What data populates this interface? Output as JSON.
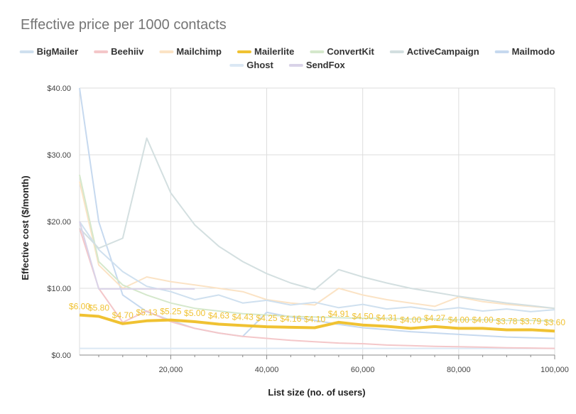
{
  "chart_data": {
    "type": "line",
    "title": "Effective price per 1000 contacts",
    "xlabel": "List size (no. of users)",
    "ylabel": "Effective cost ($/month)",
    "xlim": [
      1000,
      100000
    ],
    "ylim": [
      0,
      40
    ],
    "x_ticks": [
      20000,
      40000,
      60000,
      80000,
      100000
    ],
    "x_tick_labels": [
      "20,000",
      "40,000",
      "60,000",
      "80,000",
      "100,000"
    ],
    "y_ticks": [
      0,
      10,
      20,
      30,
      40
    ],
    "y_tick_labels": [
      "$0.00",
      "$10.00",
      "$20.00",
      "$30.00",
      "$40.00"
    ],
    "grid": true,
    "legend_position": "top",
    "series": [
      {
        "name": "BigMailer",
        "color": "#cfe0ef",
        "width": 2,
        "x": [
          1000,
          5000,
          10000,
          15000,
          20000,
          25000,
          30000,
          35000,
          40000,
          45000,
          50000,
          55000,
          60000,
          65000,
          70000,
          75000,
          80000,
          85000,
          90000,
          95000,
          100000
        ],
        "y": [
          20,
          15.8,
          12.5,
          10.3,
          9.5,
          8.3,
          9.0,
          7.8,
          8.2,
          7.5,
          7.9,
          7.1,
          7.6,
          6.9,
          7.2,
          6.7,
          7.1,
          6.6,
          6.9,
          6.5,
          6.8
        ]
      },
      {
        "name": "Beehiiv",
        "color": "#f4c7c9",
        "width": 2,
        "x": [
          1000,
          5000,
          10000,
          15000,
          20000,
          25000,
          30000,
          35000,
          40000,
          45000,
          50000,
          55000,
          60000,
          65000,
          70000,
          75000,
          80000,
          85000,
          90000,
          95000,
          100000
        ],
        "y": [
          19,
          10,
          4.9,
          6.6,
          5.0,
          4.0,
          3.3,
          2.8,
          2.5,
          2.2,
          2.0,
          1.8,
          1.7,
          1.5,
          1.4,
          1.3,
          1.25,
          1.18,
          1.1,
          1.05,
          1.0
        ]
      },
      {
        "name": "Mailchimp",
        "color": "#fbe3c5",
        "width": 2,
        "x": [
          1000,
          5000,
          10000,
          15000,
          20000,
          25000,
          30000,
          35000,
          40000,
          45000,
          50000,
          55000,
          60000,
          65000,
          70000,
          75000,
          80000,
          85000,
          90000,
          95000,
          100000
        ],
        "y": [
          26,
          13.5,
          10,
          11.7,
          11.0,
          10.5,
          10.0,
          9.5,
          8.3,
          7.8,
          7.5,
          10.0,
          9.0,
          8.3,
          7.8,
          7.3,
          8.7,
          8.0,
          7.6,
          7.3,
          7.0
        ]
      },
      {
        "name": "Mailerlite",
        "color": "#f0c232",
        "width": 4,
        "x": [
          1000,
          5000,
          10000,
          15000,
          20000,
          25000,
          30000,
          35000,
          40000,
          45000,
          50000,
          55000,
          60000,
          65000,
          70000,
          75000,
          80000,
          85000,
          90000,
          95000,
          100000
        ],
        "y": [
          6.0,
          5.8,
          4.7,
          5.13,
          5.25,
          5.0,
          4.63,
          4.43,
          4.25,
          4.16,
          4.1,
          4.91,
          4.5,
          4.31,
          4.0,
          4.27,
          4.0,
          4.0,
          3.78,
          3.79,
          3.6
        ],
        "labels": [
          "$6.00",
          "$5.80",
          "$4.70",
          "$5.13",
          "$5.25",
          "$5.00",
          "$4.63",
          "$4.43",
          "$4.25",
          "$4.16",
          "$4.10",
          "$4.91",
          "$4.50",
          "$4.31",
          "$4.00",
          "$4.27",
          "$4.00",
          "$4.00",
          "$3.78",
          "$3.79",
          "$3.60"
        ]
      },
      {
        "name": "ConvertKit",
        "color": "#d5e8cc",
        "width": 2,
        "x": [
          1000,
          5000,
          10000,
          15000,
          20000,
          25000,
          30000,
          35000,
          40000,
          45000,
          50000,
          55000,
          60000,
          65000,
          70000,
          75000,
          80000,
          85000,
          90000,
          95000,
          100000
        ],
        "y": [
          27,
          14,
          10.5,
          9.0,
          7.8,
          7.0,
          6.6,
          6.2,
          6.0,
          5.8,
          5.7,
          5.6,
          5.5,
          5.5,
          5.4,
          5.4,
          5.3,
          5.3,
          5.2,
          5.2,
          5.1
        ]
      },
      {
        "name": "ActiveCampaign",
        "color": "#d3dfe0",
        "width": 2,
        "x": [
          1000,
          5000,
          10000,
          15000,
          20000,
          25000,
          30000,
          35000,
          40000,
          45000,
          50000,
          55000,
          60000,
          65000,
          70000,
          75000,
          80000,
          85000,
          90000,
          95000,
          100000
        ],
        "y": [
          19,
          16,
          17.5,
          32.5,
          24.3,
          19.5,
          16.3,
          14.0,
          12.2,
          10.8,
          9.8,
          12.8,
          11.7,
          10.8,
          10.0,
          9.4,
          8.8,
          8.3,
          7.8,
          7.4,
          7.0
        ]
      },
      {
        "name": "Mailmodo",
        "color": "#c6d9ef",
        "width": 2,
        "x": [
          1000,
          5000,
          10000,
          15000,
          20000,
          25000,
          30000,
          35000,
          40000,
          45000,
          50000,
          55000,
          60000,
          65000,
          70000,
          75000,
          80000,
          85000,
          90000,
          95000,
          100000
        ],
        "y": [
          40,
          20,
          9.0,
          6.5,
          5.2,
          4.0,
          3.3,
          2.8,
          6.4,
          5.7,
          5.2,
          4.6,
          4.1,
          3.8,
          3.5,
          3.3,
          3.1,
          2.9,
          2.7,
          2.6,
          2.5
        ]
      },
      {
        "name": "Ghost",
        "color": "#dbe8f4",
        "width": 2,
        "x": [
          1000,
          5000,
          10000,
          15000,
          20000,
          25000,
          30000,
          35000,
          40000,
          45000,
          50000,
          55000,
          60000,
          65000,
          70000,
          75000,
          80000,
          85000,
          90000,
          95000,
          100000
        ],
        "y": [
          1.0,
          1.0,
          1.0,
          1.0,
          1.0,
          1.0,
          1.0,
          1.0,
          1.0,
          1.0,
          1.0,
          1.0,
          1.0,
          1.0,
          1.0,
          1.0,
          1.0,
          1.0,
          1.0,
          1.0,
          1.0
        ]
      },
      {
        "name": "SendFox",
        "color": "#d9d3e8",
        "width": 2,
        "x": [
          1000,
          5000,
          10000,
          15000,
          20000,
          25000
        ],
        "y": [
          20,
          9.9,
          9.9,
          9.9,
          9.9,
          9.9
        ]
      }
    ]
  }
}
